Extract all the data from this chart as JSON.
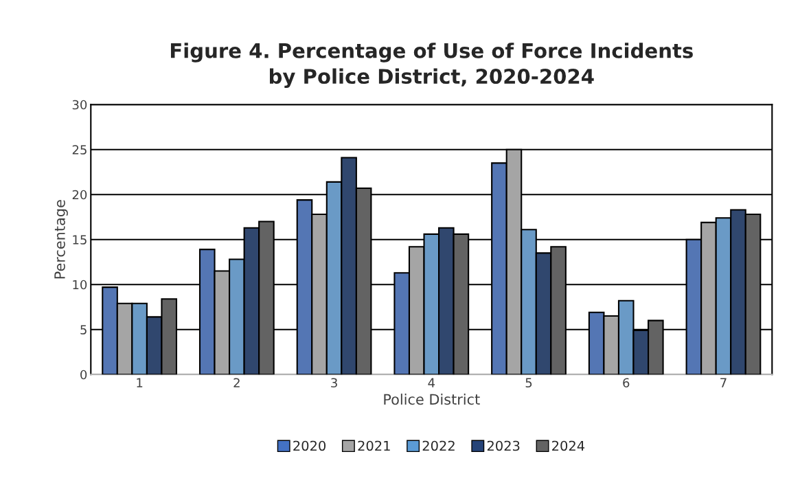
{
  "chart_data": {
    "type": "bar",
    "title": "Figure 4. Percentage of Use of Force Incidents\nby Police District, 2020-2024",
    "xlabel": "Police District",
    "ylabel": "Percentage",
    "categories": [
      "1",
      "2",
      "3",
      "4",
      "5",
      "6",
      "7"
    ],
    "series": [
      {
        "name": "2020",
        "color": "#4472c4",
        "values": [
          9.7,
          13.9,
          19.4,
          11.3,
          23.5,
          6.9,
          15.0
        ]
      },
      {
        "name": "2021",
        "color": "#a5a5a5",
        "values": [
          7.9,
          11.5,
          17.8,
          14.2,
          25.0,
          6.5,
          16.9
        ]
      },
      {
        "name": "2022",
        "color": "#5b9bd5",
        "values": [
          7.9,
          12.8,
          21.4,
          15.6,
          16.1,
          8.2,
          17.4
        ]
      },
      {
        "name": "2023",
        "color": "#264478",
        "values": [
          6.4,
          16.3,
          24.1,
          16.3,
          13.5,
          4.9,
          18.3
        ]
      },
      {
        "name": "2024",
        "color": "#636363",
        "values": [
          8.4,
          17.0,
          20.7,
          15.6,
          14.2,
          6.0,
          17.8
        ]
      }
    ],
    "ylim": [
      0,
      30
    ],
    "yticks": [
      0,
      5,
      10,
      15,
      20,
      25,
      30
    ],
    "grid": "y",
    "legend": "bottom"
  }
}
